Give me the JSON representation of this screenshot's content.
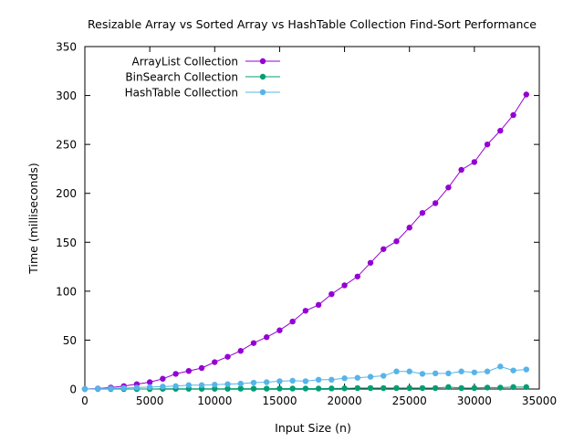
{
  "chart_data": {
    "type": "line",
    "title": "Resizable Array vs Sorted Array vs HashTable Collection Find-Sort Performance",
    "xlabel": "Input Size (n)",
    "ylabel": "Time (milliseconds)",
    "xlim": [
      0,
      35000
    ],
    "ylim": [
      0,
      350
    ],
    "xticks": [
      0,
      5000,
      10000,
      15000,
      20000,
      25000,
      30000,
      35000
    ],
    "yticks": [
      0,
      50,
      100,
      150,
      200,
      250,
      300,
      350
    ],
    "grid": false,
    "legend_position": "top-left",
    "x": [
      0,
      1000,
      2000,
      3000,
      4000,
      5000,
      6000,
      7000,
      8000,
      9000,
      10000,
      11000,
      12000,
      13000,
      14000,
      15000,
      16000,
      17000,
      18000,
      19000,
      20000,
      21000,
      22000,
      23000,
      24000,
      25000,
      26000,
      27000,
      28000,
      29000,
      30000,
      31000,
      32000,
      33000,
      34000
    ],
    "series": [
      {
        "name": "ArrayList Collection",
        "color": "#9400d3",
        "values": [
          0,
          0.5,
          1.5,
          3,
          5,
          7,
          10.5,
          15.5,
          18.5,
          21.5,
          27.5,
          33,
          39,
          47,
          53,
          60,
          69,
          80,
          86,
          97,
          106,
          115,
          129,
          143,
          151,
          165,
          180,
          190,
          206,
          224,
          232,
          250,
          264,
          280,
          301
        ]
      },
      {
        "name": "BinSearch Collection",
        "color": "#009e73",
        "values": [
          0,
          0,
          0,
          0,
          0,
          0,
          0.2,
          0.2,
          0.3,
          0.3,
          0.3,
          0.3,
          0.4,
          0.4,
          0.4,
          0.5,
          0.5,
          0.5,
          0.5,
          0.6,
          0.7,
          1,
          1,
          1,
          1,
          1,
          1,
          1,
          2,
          1,
          1,
          1.5,
          1.5,
          2,
          2
        ]
      },
      {
        "name": "HashTable Collection",
        "color": "#56b4e9",
        "values": [
          0,
          0.3,
          0.5,
          1,
          1.5,
          2,
          2.5,
          3,
          4,
          4,
          4.5,
          5,
          5.5,
          6.5,
          7,
          8,
          8.5,
          8,
          9.5,
          9.5,
          11,
          11.5,
          12.5,
          13.5,
          18,
          18,
          15.5,
          16,
          16,
          18,
          17,
          18,
          23,
          19,
          20
        ]
      }
    ]
  }
}
